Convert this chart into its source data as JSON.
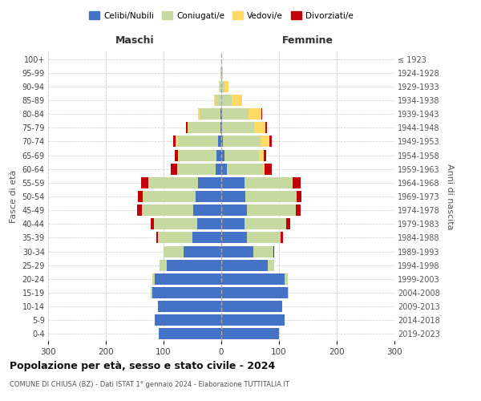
{
  "age_groups": [
    "0-4",
    "5-9",
    "10-14",
    "15-19",
    "20-24",
    "25-29",
    "30-34",
    "35-39",
    "40-44",
    "45-49",
    "50-54",
    "55-59",
    "60-64",
    "65-69",
    "70-74",
    "75-79",
    "80-84",
    "85-89",
    "90-94",
    "95-99",
    "100+"
  ],
  "birth_years": [
    "2019-2023",
    "2014-2018",
    "2009-2013",
    "2004-2008",
    "1999-2003",
    "1994-1998",
    "1989-1993",
    "1984-1988",
    "1979-1983",
    "1974-1978",
    "1969-1973",
    "1964-1968",
    "1959-1963",
    "1954-1958",
    "1949-1953",
    "1944-1948",
    "1939-1943",
    "1934-1938",
    "1929-1933",
    "1924-1928",
    "≤ 1923"
  ],
  "males": {
    "celibi": [
      108,
      115,
      110,
      120,
      115,
      95,
      65,
      50,
      42,
      48,
      45,
      40,
      10,
      8,
      5,
      2,
      2,
      0,
      0,
      0,
      0
    ],
    "coniugati": [
      0,
      0,
      0,
      2,
      5,
      12,
      35,
      60,
      75,
      90,
      90,
      85,
      65,
      65,
      70,
      55,
      35,
      10,
      3,
      1,
      0
    ],
    "vedovi": [
      0,
      0,
      0,
      0,
      0,
      0,
      0,
      0,
      0,
      0,
      1,
      2,
      2,
      2,
      4,
      2,
      3,
      3,
      1,
      0,
      0
    ],
    "divorziati": [
      0,
      0,
      0,
      0,
      0,
      0,
      0,
      2,
      5,
      8,
      8,
      12,
      10,
      5,
      4,
      2,
      0,
      0,
      0,
      0,
      0
    ]
  },
  "females": {
    "nubili": [
      100,
      110,
      105,
      115,
      110,
      80,
      55,
      45,
      40,
      44,
      42,
      40,
      10,
      5,
      3,
      2,
      2,
      0,
      0,
      0,
      0
    ],
    "coniugate": [
      0,
      0,
      0,
      2,
      5,
      12,
      35,
      58,
      72,
      85,
      88,
      82,
      62,
      60,
      65,
      55,
      45,
      18,
      5,
      2,
      0
    ],
    "vedove": [
      0,
      0,
      0,
      0,
      0,
      0,
      0,
      0,
      0,
      0,
      1,
      2,
      3,
      8,
      15,
      20,
      22,
      18,
      8,
      1,
      0
    ],
    "divorziate": [
      0,
      0,
      0,
      0,
      0,
      0,
      2,
      4,
      8,
      8,
      8,
      14,
      12,
      5,
      4,
      2,
      2,
      0,
      0,
      0,
      0
    ]
  },
  "colors": {
    "celibi": "#4472C4",
    "coniugati": "#C5D9A0",
    "vedovi": "#FFD966",
    "divorziati": "#C0000B"
  },
  "title": "Popolazione per età, sesso e stato civile - 2024",
  "subtitle": "COMUNE DI CHIUSA (BZ) - Dati ISTAT 1° gennaio 2024 - Elaborazione TUTTITALIA.IT",
  "xlabel_left": "Maschi",
  "xlabel_right": "Femmine",
  "ylabel_left": "Fasce di età",
  "ylabel_right": "Anni di nascita",
  "xmin": -300,
  "xmax": 300,
  "xticks": [
    -300,
    -200,
    -100,
    0,
    100,
    200,
    300
  ],
  "legend_labels": [
    "Celibi/Nubili",
    "Coniugati/e",
    "Vedovi/e",
    "Divorziati/e"
  ],
  "background_color": "#ffffff",
  "grid_color": "#cccccc"
}
